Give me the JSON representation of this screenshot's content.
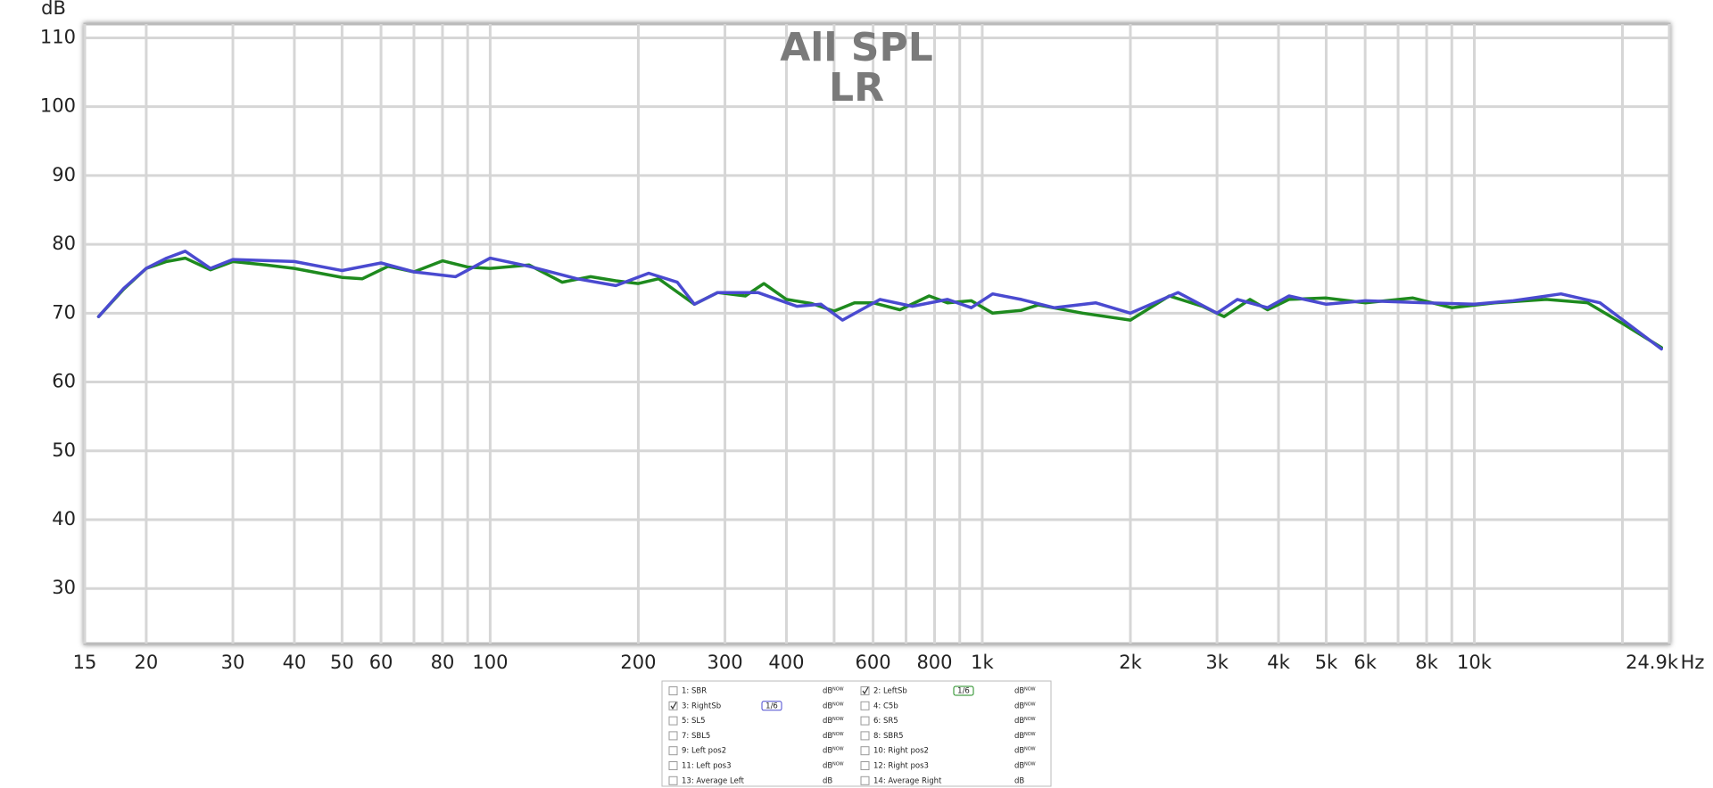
{
  "chart_data": {
    "type": "line",
    "title": "All SPL",
    "subtitle": "LR",
    "y_label": "dB",
    "x_label": "Hz",
    "xscale": "log",
    "grid": true,
    "xlim": [
      15,
      24900
    ],
    "ylim": [
      22,
      112
    ],
    "yticks": [
      30,
      40,
      50,
      60,
      70,
      80,
      90,
      100,
      110
    ],
    "xticks": [
      15,
      20,
      30,
      40,
      50,
      60,
      80,
      100,
      200,
      300,
      400,
      600,
      800,
      {
        "value": 1000,
        "label": "1k"
      },
      {
        "value": 2000,
        "label": "2k"
      },
      {
        "value": 3000,
        "label": "3k"
      },
      {
        "value": 4000,
        "label": "4k"
      },
      {
        "value": 5000,
        "label": "5k"
      },
      {
        "value": 6000,
        "label": "6k"
      },
      {
        "value": 8000,
        "label": "8k"
      },
      {
        "value": 10000,
        "label": "10k"
      },
      {
        "value": 24900,
        "label": "24.9k"
      }
    ],
    "xminor": [
      70,
      90,
      500,
      700,
      900,
      7000,
      9000,
      20000
    ],
    "series": [
      {
        "name": "2: LeftSb",
        "color": "#1e8a1e",
        "x": [
          16,
          18,
          20,
          22,
          24,
          27,
          30,
          35,
          40,
          50,
          55,
          62,
          70,
          80,
          90,
          100,
          120,
          140,
          160,
          180,
          200,
          220,
          260,
          290,
          330,
          360,
          400,
          450,
          500,
          550,
          600,
          680,
          780,
          850,
          950,
          1050,
          1200,
          1300,
          1600,
          2000,
          2400,
          2800,
          3100,
          3500,
          3800,
          4200,
          5000,
          6000,
          7500,
          9000,
          11000,
          14000,
          17000,
          20000,
          24000
        ],
        "values": [
          69.5,
          73.5,
          76.5,
          77.5,
          78,
          76.3,
          77.5,
          77,
          76.5,
          75.2,
          75,
          76.8,
          76,
          77.6,
          76.7,
          76.5,
          77,
          74.5,
          75.3,
          74.7,
          74.3,
          75,
          71.3,
          73,
          72.5,
          74.3,
          72,
          71.4,
          70.3,
          71.5,
          71.5,
          70.5,
          72.5,
          71.5,
          71.8,
          70,
          70.4,
          71.2,
          70,
          69,
          72.5,
          71,
          69.5,
          72,
          70.5,
          72,
          72.2,
          71.5,
          72.2,
          70.8,
          71.5,
          72,
          71.5,
          68.5,
          65
        ]
      },
      {
        "name": "3: RightSb",
        "color": "#4a4ad0",
        "x": [
          16,
          18,
          20,
          22,
          24,
          27,
          30,
          40,
          50,
          60,
          70,
          85,
          100,
          120,
          150,
          180,
          210,
          240,
          260,
          290,
          350,
          420,
          470,
          520,
          620,
          720,
          850,
          950,
          1050,
          1200,
          1400,
          1700,
          2000,
          2500,
          3000,
          3300,
          3800,
          4200,
          5000,
          6000,
          8000,
          10000,
          12000,
          15000,
          18000,
          24000
        ],
        "values": [
          69.5,
          73.6,
          76.5,
          78,
          79,
          76.5,
          77.8,
          77.5,
          76.2,
          77.3,
          76,
          75.3,
          78,
          76.8,
          75,
          74,
          75.8,
          74.5,
          71.3,
          73,
          73,
          71,
          71.3,
          69,
          72,
          71,
          72,
          70.8,
          72.8,
          72,
          70.8,
          71.5,
          70,
          73,
          70,
          72,
          70.8,
          72.5,
          71.3,
          71.8,
          71.5,
          71.3,
          71.8,
          72.8,
          71.5,
          64.8
        ]
      }
    ]
  },
  "panel": {
    "unit_label": "dB",
    "now_label": "NOW",
    "smoothing": "1/6",
    "entries": [
      {
        "label": "1: SBR",
        "color": "#a01818",
        "checked": false
      },
      {
        "label": "4: C5b",
        "color": "#8a2a9a",
        "checked": false
      },
      {
        "label": "5: SL5",
        "color": "#1a8a8a",
        "checked": false
      },
      {
        "label": "6: SR5",
        "color": "#c08a10",
        "checked": false
      },
      {
        "label": "7: SBL5",
        "color": "#1a8a6a",
        "checked": false
      },
      {
        "label": "8: SBR5",
        "color": "#6a2a9a",
        "checked": false
      },
      {
        "label": "9: Left pos2",
        "color": "#b02020",
        "checked": false
      },
      {
        "label": "10: Right pos2",
        "color": "#1a8aa0",
        "checked": false
      },
      {
        "label": "11: Left pos3",
        "color": "#b02020",
        "checked": false
      },
      {
        "label": "12: Right pos3",
        "color": "#1a9a3a",
        "checked": false
      },
      {
        "label": "13: Average Left",
        "color": "#3a3a6a",
        "checked": false
      },
      {
        "label": "14: Average Right",
        "color": "#8a2a9a",
        "checked": false
      }
    ]
  }
}
